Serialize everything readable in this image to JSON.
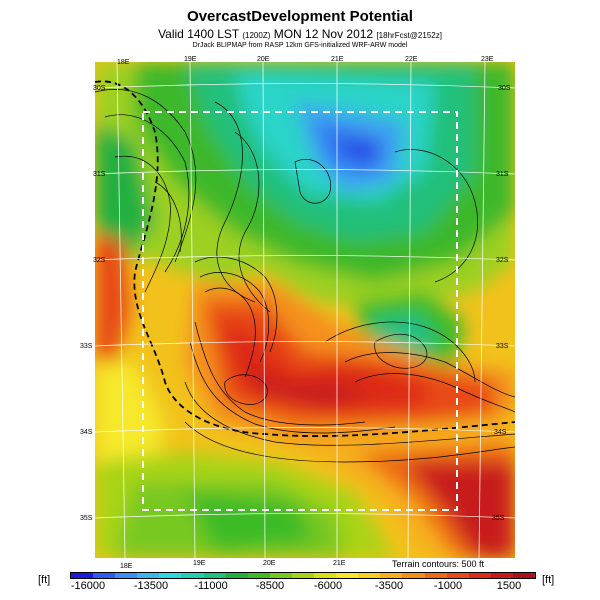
{
  "header": {
    "title": "OvercastDevelopment Potential",
    "valid_prefix": "Valid 1400 LST",
    "valid_time_small": "(1200Z)",
    "valid_suffix": "MON 12 Nov 2012",
    "forecast_small": "[18hrFcst@2152z]",
    "credit": "DrJack BLIPMAP from RASP 12km GFS-initialized WRF-ARW model"
  },
  "map": {
    "lon_ticks_top": [
      "18E",
      "19E",
      "20E",
      "21E",
      "22E",
      "23E"
    ],
    "lon_ticks_bottom": [
      "18E",
      "19E",
      "20E",
      "21E"
    ],
    "lat_ticks_left": [
      "30S",
      "31S",
      "32S",
      "33S",
      "34S",
      "35S"
    ],
    "lat_ticks_right": [
      "30S",
      "31S",
      "32S",
      "33S",
      "34S",
      "35S"
    ],
    "terrain_note": "Terrain contours: 500 ft"
  },
  "legend": {
    "unit_left": "[ft]",
    "unit_right": "[ft]",
    "labels": [
      "-16000",
      "-13500",
      "-11000",
      "-8500",
      "-6000",
      "-3500",
      "-1000",
      "1500"
    ],
    "colors": [
      "#1c1ce0",
      "#2f5cf0",
      "#3f8ef8",
      "#3bb8f0",
      "#2cd9e0",
      "#22d0b0",
      "#20c080",
      "#21b040",
      "#3dbb28",
      "#78c820",
      "#a8d418",
      "#d8e018",
      "#f6e82a",
      "#f8d020",
      "#f6b01c",
      "#f4901a",
      "#ee6a18",
      "#e84a16",
      "#de2a18",
      "#c81a1c",
      "#a8141c"
    ]
  }
}
